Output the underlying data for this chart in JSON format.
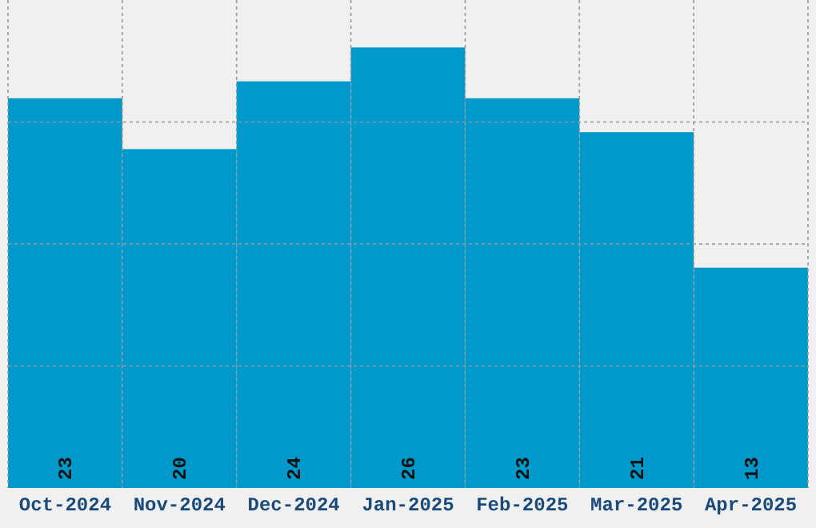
{
  "chart_data": {
    "type": "bar",
    "categories": [
      "Oct-2024",
      "Nov-2024",
      "Dec-2024",
      "Jan-2025",
      "Feb-2025",
      "Mar-2025",
      "Apr-2025"
    ],
    "values": [
      23,
      20,
      24,
      26,
      23,
      21,
      13
    ],
    "color": "#0099cc",
    "ylim": [
      0,
      28.8
    ],
    "yticks": [
      {
        "value": 7.2,
        "label": null
      },
      {
        "value": 14.4,
        "label": null
      },
      {
        "value": 21.6,
        "label": null
      }
    ],
    "grid": true,
    "data_labels": true,
    "tick_labels": "x"
  }
}
